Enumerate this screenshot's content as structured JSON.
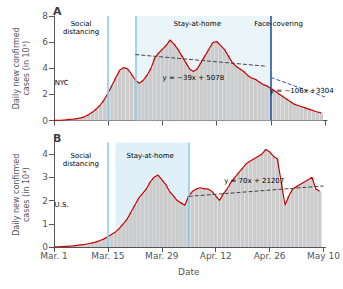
{
  "chart_data": [
    {
      "type": "bar",
      "title": "A",
      "ylabel": "Daily new confirmed\ncases (in 10³)",
      "x": [
        0,
        1,
        2,
        3,
        4,
        5,
        6,
        7,
        8,
        9,
        10,
        11,
        12,
        13,
        14,
        15,
        16,
        17,
        18,
        19,
        20,
        21,
        22,
        23,
        24,
        25,
        26,
        27,
        28,
        29,
        30,
        31,
        32,
        33,
        34,
        35,
        36,
        37,
        38,
        39,
        40,
        41,
        42,
        43,
        44,
        45,
        46,
        47,
        48,
        49,
        50,
        51,
        52,
        53,
        54,
        55,
        56,
        57,
        58,
        59,
        60,
        61,
        62,
        63,
        64,
        65,
        66,
        67,
        68,
        69
      ],
      "series": [
        {
          "type": "bar",
          "color": "#cccccc",
          "values": [
            0.01,
            0.02,
            0.03,
            0.05,
            0.08,
            0.1,
            0.15,
            0.2,
            0.3,
            0.45,
            0.65,
            0.9,
            1.2,
            1.6,
            2.1,
            2.7,
            3.3,
            3.8,
            4.0,
            3.9,
            3.5,
            3.1,
            2.9,
            3.1,
            3.5,
            4.0,
            4.8,
            5.2,
            5.5,
            5.8,
            6.2,
            5.9,
            5.5,
            5.0,
            4.5,
            4.0,
            3.8,
            4.0,
            4.5,
            5.0,
            5.5,
            6.0,
            6.1,
            5.8,
            5.5,
            5.0,
            4.5,
            4.2,
            4.0,
            3.8,
            3.5,
            3.3,
            3.2,
            3.0,
            2.8,
            2.7,
            2.5,
            2.3,
            2.1,
            1.9,
            1.7,
            1.5,
            1.3,
            1.2,
            1.1,
            1.0,
            0.9,
            0.8,
            0.7,
            0.6
          ]
        },
        {
          "type": "line",
          "color": "#cc0000",
          "values": [
            0.01,
            0.02,
            0.03,
            0.05,
            0.08,
            0.1,
            0.15,
            0.2,
            0.3,
            0.45,
            0.65,
            0.9,
            1.2,
            1.6,
            2.1,
            2.7,
            3.3,
            3.85,
            4.05,
            3.95,
            3.55,
            3.1,
            2.85,
            3.05,
            3.45,
            3.95,
            4.75,
            5.15,
            5.45,
            5.75,
            6.15,
            5.85,
            5.45,
            4.95,
            4.45,
            3.95,
            3.75,
            3.95,
            4.45,
            4.95,
            5.45,
            5.95,
            6.05,
            5.75,
            5.45,
            4.95,
            4.45,
            4.15,
            3.95,
            3.75,
            3.45,
            3.25,
            3.15,
            2.95,
            2.75,
            2.65,
            2.45,
            2.25,
            2.05,
            1.85,
            1.65,
            1.45,
            1.25,
            1.15,
            1.05,
            0.95,
            0.85,
            0.75,
            0.65,
            0.58
          ]
        },
        {
          "type": "line",
          "color": "#444444",
          "line_style": "dashed",
          "x": [
            21,
            55
          ],
          "values": [
            5.05,
            4.15
          ]
        },
        {
          "type": "line",
          "color": "#3355bb",
          "line_style": "dashed",
          "x": [
            56,
            70
          ],
          "values": [
            3.3,
            1.8
          ]
        }
      ],
      "vlines": [
        {
          "x": 14,
          "color": "#87ceeb"
        },
        {
          "x": 21,
          "color": "#87ceeb"
        },
        {
          "x": 56,
          "color": "#2255aa"
        }
      ],
      "spans": [
        {
          "from": 21,
          "to": 56,
          "color": "#b8ddf0"
        }
      ],
      "annotations": [
        {
          "text": "NYC",
          "x": 2,
          "y": 3.2
        },
        {
          "text": "Social\ndistancing",
          "x": 7,
          "y": 7.7
        },
        {
          "text": "Stay-at-home",
          "x": 37,
          "y": 7.7
        },
        {
          "text": "Face-covering",
          "x": 58,
          "y": 7.7
        },
        {
          "text": "y = −39x + 5078",
          "x": 36,
          "y": 3.55
        },
        {
          "text": "y = −106x +3304",
          "x": 64,
          "y": 2.6
        }
      ],
      "xlim": [
        -0.5,
        70.5
      ],
      "xticks": [
        0,
        14,
        28,
        42,
        56,
        70
      ],
      "ylim": [
        0,
        8
      ],
      "yticks": [
        0,
        2,
        4,
        6,
        8
      ],
      "grid": false,
      "tick_labels": "y"
    },
    {
      "type": "bar",
      "title": "B",
      "ylabel": "Daily new confirmed\ncases (in 10⁴)",
      "xlabel": "Date",
      "x": [
        0,
        1,
        2,
        3,
        4,
        5,
        6,
        7,
        8,
        9,
        10,
        11,
        12,
        13,
        14,
        15,
        16,
        17,
        18,
        19,
        20,
        21,
        22,
        23,
        24,
        25,
        26,
        27,
        28,
        29,
        30,
        31,
        32,
        33,
        34,
        35,
        36,
        37,
        38,
        39,
        40,
        41,
        42,
        43,
        44,
        45,
        46,
        47,
        48,
        49,
        50,
        51,
        52,
        53,
        54,
        55,
        56,
        57,
        58,
        59,
        60,
        61,
        62,
        63,
        64,
        65,
        66,
        67,
        68,
        69
      ],
      "series": [
        {
          "type": "bar",
          "color": "#cccccc",
          "values": [
            0.01,
            0.01,
            0.02,
            0.03,
            0.04,
            0.05,
            0.07,
            0.09,
            0.11,
            0.14,
            0.18,
            0.22,
            0.28,
            0.35,
            0.44,
            0.55,
            0.65,
            0.8,
            1.0,
            1.2,
            1.5,
            1.8,
            2.1,
            2.3,
            2.5,
            2.8,
            3.0,
            3.1,
            2.9,
            2.7,
            2.4,
            2.2,
            2.0,
            1.9,
            1.8,
            2.2,
            2.4,
            2.5,
            2.5,
            2.5,
            2.5,
            2.4,
            2.2,
            2.0,
            2.3,
            2.5,
            2.8,
            3.0,
            3.2,
            3.4,
            3.6,
            3.7,
            3.8,
            3.9,
            4.0,
            4.2,
            4.1,
            3.9,
            3.8,
            2.8,
            1.8,
            2.2,
            2.5,
            2.6,
            2.7,
            2.8,
            2.9,
            3.0,
            2.5,
            2.4
          ]
        },
        {
          "type": "line",
          "color": "#cc0000",
          "values": [
            0.01,
            0.01,
            0.02,
            0.03,
            0.04,
            0.05,
            0.07,
            0.09,
            0.11,
            0.14,
            0.18,
            0.22,
            0.28,
            0.35,
            0.44,
            0.55,
            0.65,
            0.8,
            1.0,
            1.2,
            1.5,
            1.8,
            2.1,
            2.3,
            2.5,
            2.8,
            3.0,
            3.1,
            2.9,
            2.7,
            2.4,
            2.2,
            2.0,
            1.9,
            1.8,
            2.2,
            2.4,
            2.5,
            2.55,
            2.5,
            2.5,
            2.4,
            2.2,
            2.0,
            2.3,
            2.5,
            2.8,
            3.0,
            3.2,
            3.4,
            3.6,
            3.7,
            3.8,
            3.9,
            4.0,
            4.2,
            4.1,
            3.9,
            3.8,
            2.8,
            1.8,
            2.2,
            2.5,
            2.6,
            2.7,
            2.8,
            2.9,
            3.0,
            2.5,
            2.4
          ]
        },
        {
          "type": "line",
          "color": "#444444",
          "line_style": "dashed",
          "x": [
            35,
            70
          ],
          "values": [
            2.18,
            2.63
          ]
        }
      ],
      "vlines": [
        {
          "x": 14,
          "color": "#87ceeb"
        },
        {
          "x": 35,
          "color": "#87ceeb"
        }
      ],
      "spans": [
        {
          "from": 16,
          "to": 35,
          "color": "#b8ddf0"
        }
      ],
      "annotations": [
        {
          "text": "U.S.",
          "x": 2,
          "y": 2.0
        },
        {
          "text": "Social\ndistancing",
          "x": 7,
          "y": 4.1
        },
        {
          "text": "Stay-at-home",
          "x": 25,
          "y": 4.1
        },
        {
          "text": "y = 70x + 21207",
          "x": 52,
          "y": 3.0
        }
      ],
      "xlim": [
        -0.5,
        70.5
      ],
      "xticks": [
        {
          "value": 0,
          "label": "Mar. 1"
        },
        {
          "value": 14,
          "label": "Mar. 15"
        },
        {
          "value": 28,
          "label": "Mar. 29"
        },
        {
          "value": 42,
          "label": "Apr. 12"
        },
        {
          "value": 56,
          "label": "Apr. 26"
        },
        {
          "value": 70,
          "label": "May 10"
        }
      ],
      "ylim": [
        0,
        4.5
      ],
      "yticks": [
        0,
        1,
        2,
        3,
        4
      ],
      "grid": false
    }
  ]
}
